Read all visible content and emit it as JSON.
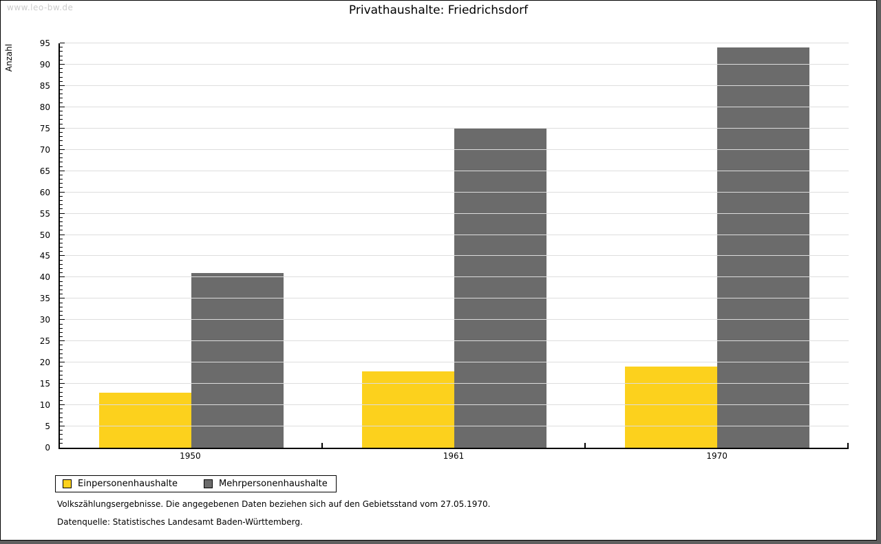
{
  "watermark": "www.leo-bw.de",
  "chart_data": {
    "type": "bar",
    "title": "Privathaushalte: Friedrichsdorf",
    "ylabel": "Anzahl",
    "xlabel": "",
    "categories": [
      "1950",
      "1961",
      "1970"
    ],
    "series": [
      {
        "name": "Einpersonenhaushalte",
        "color": "#FCD11D",
        "values": [
          13,
          18,
          19
        ]
      },
      {
        "name": "Mehrpersonenhaushalte",
        "color": "#6B6B6B",
        "values": [
          41,
          75,
          94
        ]
      }
    ],
    "ylim": [
      0,
      95
    ],
    "ytick_step": 5,
    "minor_tick_step": 1,
    "grid": true,
    "legend_position": "bottom-left"
  },
  "footer": {
    "line1": "Volkszählungsergebnisse. Die angegebenen Daten beziehen sich auf den Gebietsstand vom 27.05.1970.",
    "line2": "Datenquelle: Statistisches Landesamt Baden-Württemberg."
  },
  "colors": {
    "background": "#FFFFFF",
    "axis": "#000000",
    "gridline": "#DDDDDD",
    "watermark_text": "#CCCCCC",
    "frame_shadow": "#5E5E5E"
  }
}
